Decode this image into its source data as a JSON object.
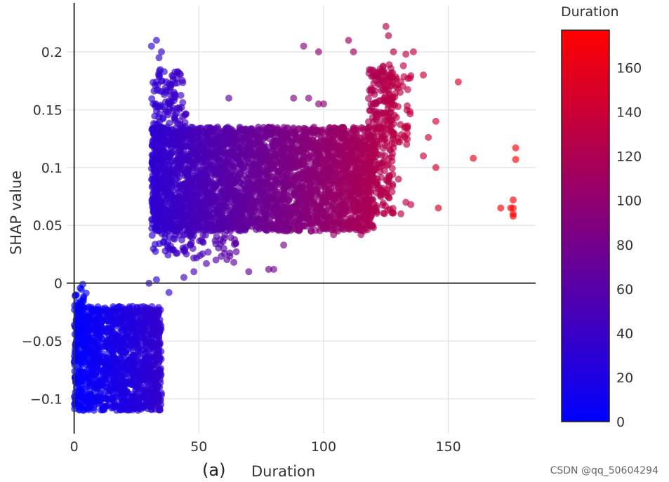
{
  "chart_data": {
    "type": "scatter",
    "panel_label": "(a)",
    "xlabel": "Duration",
    "ylabel": "SHAP value",
    "xlim": [
      -3,
      185
    ],
    "ylim": [
      -0.13,
      0.24
    ],
    "x_ticks": [
      0,
      50,
      100,
      150
    ],
    "x_tick_labels": [
      "0",
      "50",
      "100",
      "150"
    ],
    "y_ticks": [
      -0.1,
      -0.05,
      0,
      0.05,
      0.1,
      0.15,
      0.2
    ],
    "y_tick_labels": [
      "−0.1",
      "−0.05",
      "0",
      "0.05",
      "0.1",
      "0.15",
      "0.2"
    ],
    "grid": true,
    "colorbar": {
      "title": "Duration",
      "range": [
        0,
        177
      ],
      "ticks": [
        0,
        20,
        40,
        60,
        80,
        100,
        120,
        140,
        160
      ],
      "tick_labels": [
        "0",
        "20",
        "40",
        "60",
        "80",
        "100",
        "120",
        "140",
        "160"
      ],
      "colors": [
        "#0000ff",
        "#ff0000"
      ]
    },
    "clusters": [
      {
        "x": [
          0,
          35
        ],
        "y": [
          -0.11,
          -0.02
        ],
        "count": 1400
      },
      {
        "x": [
          0,
          6
        ],
        "y": [
          -0.04,
          0.0
        ],
        "count": 40
      },
      {
        "x": [
          31,
          120
        ],
        "y": [
          0.045,
          0.135
        ],
        "count": 3400
      },
      {
        "x": [
          31,
          65
        ],
        "y": [
          0.02,
          0.065
        ],
        "count": 160
      },
      {
        "x": [
          31,
          45
        ],
        "y": [
          0.13,
          0.185
        ],
        "count": 120
      },
      {
        "x": [
          118,
          128
        ],
        "y": [
          0.06,
          0.19
        ],
        "count": 260
      },
      {
        "x": [
          125,
          135
        ],
        "y": [
          0.12,
          0.18
        ],
        "count": 60
      }
    ],
    "points": [
      [
        31,
        0.205
      ],
      [
        33,
        0.21
      ],
      [
        35,
        0.2
      ],
      [
        34,
        0.195
      ],
      [
        62,
        0.16
      ],
      [
        65,
        0.125
      ],
      [
        72,
        0.12
      ],
      [
        88,
        0.16
      ],
      [
        94,
        0.16
      ],
      [
        98,
        0.155
      ],
      [
        92,
        0.11
      ],
      [
        100,
        0.155
      ],
      [
        92,
        0.205
      ],
      [
        98,
        0.2
      ],
      [
        110,
        0.21
      ],
      [
        112,
        0.2
      ],
      [
        125,
        0.222
      ],
      [
        126,
        0.214
      ],
      [
        133,
        0.198
      ],
      [
        128,
        0.2
      ],
      [
        132,
        0.188
      ],
      [
        136,
        0.2
      ],
      [
        140,
        0.18
      ],
      [
        145,
        0.14
      ],
      [
        142,
        0.126
      ],
      [
        145,
        0.1
      ],
      [
        146,
        0.065
      ],
      [
        154,
        0.174
      ],
      [
        160,
        0.108
      ],
      [
        171,
        0.065
      ],
      [
        175,
        0.065
      ],
      [
        176,
        0.06
      ],
      [
        176,
        0.072
      ],
      [
        177,
        0.107
      ],
      [
        177,
        0.117
      ],
      [
        176,
        0.065
      ],
      [
        176,
        0.058
      ],
      [
        131,
        0.06
      ],
      [
        133,
        0.07
      ],
      [
        135,
        0.068
      ],
      [
        130,
        0.09
      ],
      [
        140,
        0.11
      ],
      [
        30,
        0.0
      ],
      [
        33,
        0.003
      ],
      [
        38,
        -0.008
      ],
      [
        44,
        0.005
      ],
      [
        48,
        0.01
      ],
      [
        47,
        0.035
      ],
      [
        53,
        0.017
      ],
      [
        60,
        0.03
      ],
      [
        64,
        0.018
      ],
      [
        70,
        0.01
      ],
      [
        78,
        0.012
      ],
      [
        80,
        0.012
      ],
      [
        84,
        0.033
      ],
      [
        95,
        0.045
      ],
      [
        104,
        0.042
      ],
      [
        115,
        0.042
      ],
      [
        120,
        0.048
      ]
    ]
  },
  "watermark": "CSDN @qq_50604294"
}
